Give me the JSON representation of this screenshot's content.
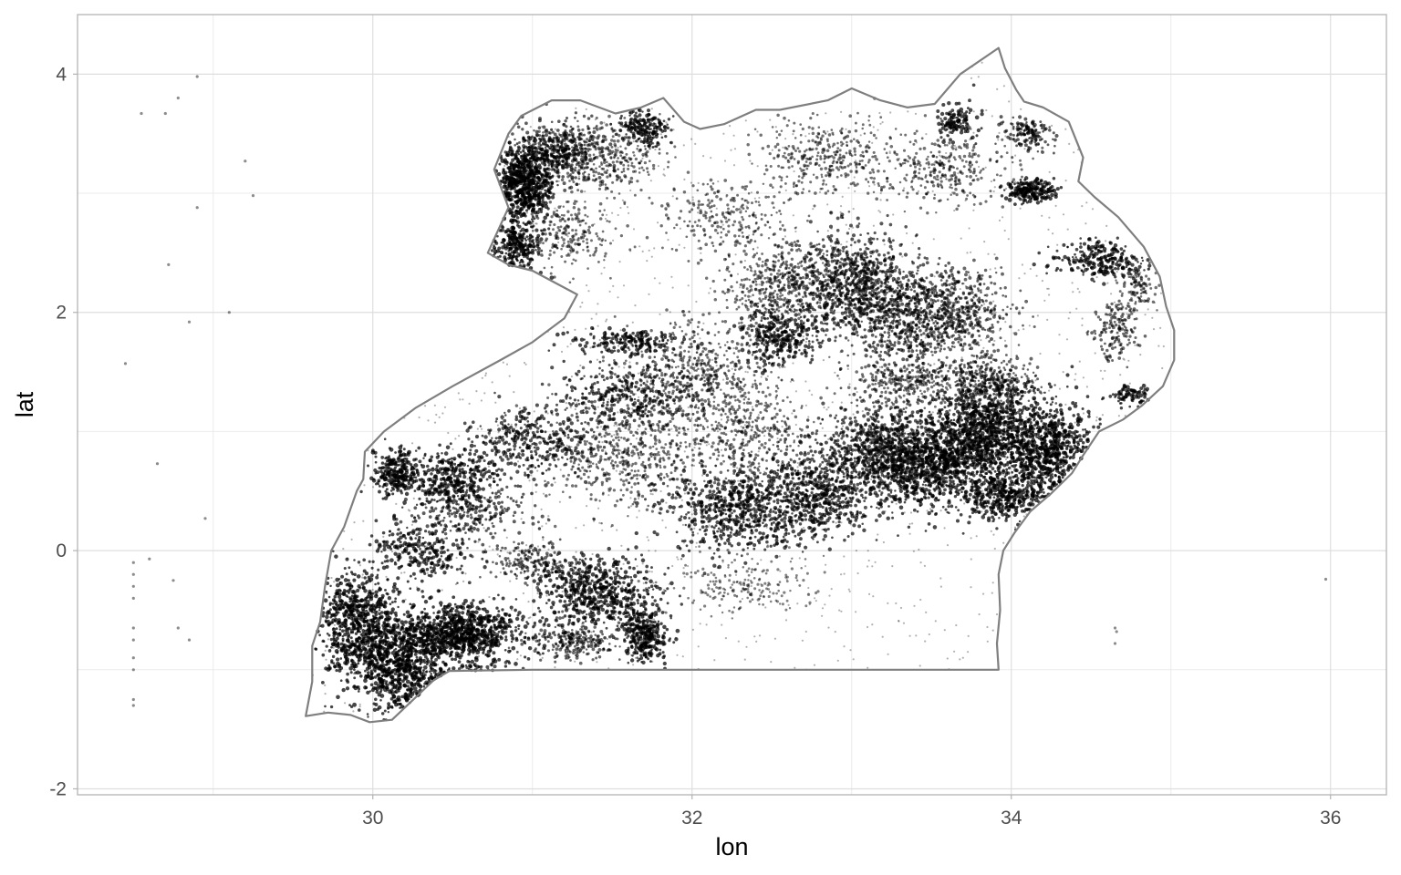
{
  "chart_data": {
    "type": "scatter",
    "title": "",
    "xlabel": "lon",
    "ylabel": "lat",
    "xlim": [
      28.15,
      36.35
    ],
    "ylim": [
      -2.05,
      4.5
    ],
    "x_ticks": [
      30,
      32,
      34,
      36
    ],
    "y_ticks": [
      -2,
      0,
      2,
      4
    ],
    "x_tick_labels": [
      "30",
      "32",
      "34",
      "36"
    ],
    "y_tick_labels": [
      "-2",
      "0",
      "2",
      "4"
    ],
    "grid": true,
    "theme": "light",
    "point_color": "#000000",
    "point_alpha": 0.35,
    "boundary_color": "#7f7f7f",
    "boundary": [
      [
        29.58,
        -1.39
      ],
      [
        29.72,
        -1.36
      ],
      [
        29.86,
        -1.38
      ],
      [
        29.98,
        -1.44
      ],
      [
        30.12,
        -1.42
      ],
      [
        30.27,
        -1.23
      ],
      [
        30.38,
        -1.09
      ],
      [
        30.48,
        -1.01
      ],
      [
        31.0,
        -1.0
      ],
      [
        31.6,
        -1.0
      ],
      [
        32.3,
        -1.0
      ],
      [
        33.0,
        -1.0
      ],
      [
        33.92,
        -1.0
      ],
      [
        33.91,
        -0.78
      ],
      [
        33.93,
        -0.5
      ],
      [
        33.92,
        -0.2
      ],
      [
        33.95,
        0.0
      ],
      [
        34.02,
        0.15
      ],
      [
        34.12,
        0.33
      ],
      [
        34.25,
        0.48
      ],
      [
        34.38,
        0.65
      ],
      [
        34.45,
        0.8
      ],
      [
        34.55,
        1.0
      ],
      [
        34.7,
        1.1
      ],
      [
        34.82,
        1.22
      ],
      [
        34.95,
        1.38
      ],
      [
        35.02,
        1.6
      ],
      [
        35.02,
        1.85
      ],
      [
        34.97,
        2.05
      ],
      [
        34.93,
        2.3
      ],
      [
        34.83,
        2.55
      ],
      [
        34.67,
        2.8
      ],
      [
        34.52,
        2.97
      ],
      [
        34.42,
        3.1
      ],
      [
        34.45,
        3.3
      ],
      [
        34.39,
        3.5
      ],
      [
        34.36,
        3.6
      ],
      [
        34.2,
        3.72
      ],
      [
        34.08,
        3.77
      ],
      [
        34.03,
        3.87
      ],
      [
        33.96,
        4.05
      ],
      [
        33.92,
        4.22
      ],
      [
        33.68,
        4.0
      ],
      [
        33.52,
        3.75
      ],
      [
        33.35,
        3.72
      ],
      [
        33.18,
        3.78
      ],
      [
        33.0,
        3.88
      ],
      [
        32.85,
        3.78
      ],
      [
        32.55,
        3.7
      ],
      [
        32.4,
        3.7
      ],
      [
        32.2,
        3.58
      ],
      [
        32.05,
        3.54
      ],
      [
        31.95,
        3.6
      ],
      [
        31.82,
        3.8
      ],
      [
        31.68,
        3.72
      ],
      [
        31.52,
        3.67
      ],
      [
        31.3,
        3.78
      ],
      [
        31.12,
        3.78
      ],
      [
        30.93,
        3.65
      ],
      [
        30.85,
        3.5
      ],
      [
        30.76,
        3.2
      ],
      [
        30.85,
        2.88
      ],
      [
        30.72,
        2.5
      ],
      [
        30.85,
        2.4
      ],
      [
        31.0,
        2.35
      ],
      [
        31.28,
        2.15
      ],
      [
        31.2,
        1.95
      ],
      [
        31.0,
        1.75
      ],
      [
        30.8,
        1.6
      ],
      [
        30.5,
        1.38
      ],
      [
        30.27,
        1.2
      ],
      [
        30.07,
        1.0
      ],
      [
        29.95,
        0.83
      ],
      [
        29.94,
        0.6
      ],
      [
        29.9,
        0.5
      ],
      [
        29.82,
        0.2
      ],
      [
        29.74,
        0.0
      ],
      [
        29.7,
        -0.3
      ],
      [
        29.67,
        -0.6
      ],
      [
        29.62,
        -0.8
      ],
      [
        29.62,
        -1.1
      ],
      [
        29.58,
        -1.39
      ]
    ],
    "clusters": [
      [
        30.95,
        3.08,
        0.14,
        0.26,
        650,
        0.95
      ],
      [
        31.15,
        3.35,
        0.25,
        0.2,
        500,
        0.7
      ],
      [
        31.45,
        3.3,
        0.3,
        0.25,
        350,
        0.5
      ],
      [
        31.7,
        3.55,
        0.12,
        0.12,
        180,
        0.9
      ],
      [
        30.9,
        2.55,
        0.13,
        0.2,
        300,
        0.9
      ],
      [
        31.25,
        2.65,
        0.22,
        0.25,
        200,
        0.5
      ],
      [
        32.2,
        2.8,
        0.3,
        0.25,
        220,
        0.5
      ],
      [
        32.85,
        3.3,
        0.35,
        0.25,
        350,
        0.5
      ],
      [
        33.6,
        3.2,
        0.3,
        0.25,
        300,
        0.5
      ],
      [
        33.65,
        3.6,
        0.1,
        0.12,
        120,
        0.9
      ],
      [
        34.1,
        3.5,
        0.12,
        0.12,
        150,
        0.7
      ],
      [
        34.12,
        3.02,
        0.12,
        0.08,
        200,
        0.95
      ],
      [
        34.55,
        2.45,
        0.25,
        0.12,
        250,
        0.9
      ],
      [
        34.65,
        1.85,
        0.12,
        0.2,
        150,
        0.6
      ],
      [
        34.8,
        2.2,
        0.1,
        0.15,
        100,
        0.5
      ],
      [
        34.75,
        1.3,
        0.1,
        0.08,
        80,
        0.9
      ],
      [
        32.55,
        2.2,
        0.3,
        0.35,
        500,
        0.5
      ],
      [
        33.0,
        2.25,
        0.3,
        0.35,
        800,
        0.75
      ],
      [
        33.35,
        1.95,
        0.3,
        0.35,
        700,
        0.7
      ],
      [
        33.7,
        2.0,
        0.25,
        0.3,
        400,
        0.6
      ],
      [
        32.55,
        1.8,
        0.2,
        0.2,
        300,
        0.9
      ],
      [
        32.0,
        1.5,
        0.4,
        0.35,
        500,
        0.5
      ],
      [
        31.6,
        1.75,
        0.3,
        0.1,
        200,
        0.9
      ],
      [
        31.6,
        1.3,
        0.35,
        0.2,
        350,
        0.8
      ],
      [
        31.0,
        0.9,
        0.35,
        0.25,
        400,
        0.8
      ],
      [
        30.5,
        0.6,
        0.25,
        0.2,
        350,
        0.9
      ],
      [
        30.15,
        0.65,
        0.12,
        0.15,
        250,
        0.95
      ],
      [
        30.3,
        0.0,
        0.25,
        0.2,
        250,
        0.9
      ],
      [
        30.6,
        0.3,
        0.3,
        0.2,
        250,
        0.7
      ],
      [
        31.6,
        0.8,
        0.4,
        0.35,
        500,
        0.5
      ],
      [
        32.3,
        1.0,
        0.35,
        0.35,
        400,
        0.5
      ],
      [
        32.3,
        0.35,
        0.35,
        0.3,
        700,
        0.85
      ],
      [
        32.8,
        0.5,
        0.3,
        0.3,
        600,
        0.85
      ],
      [
        33.2,
        0.85,
        0.3,
        0.3,
        900,
        0.75
      ],
      [
        33.5,
        0.7,
        0.3,
        0.3,
        800,
        0.9
      ],
      [
        33.8,
        1.0,
        0.25,
        0.3,
        800,
        0.95
      ],
      [
        34.2,
        0.85,
        0.25,
        0.35,
        900,
        0.95
      ],
      [
        33.95,
        0.45,
        0.2,
        0.15,
        350,
        0.9
      ],
      [
        33.85,
        1.4,
        0.25,
        0.2,
        400,
        0.6
      ],
      [
        33.35,
        1.4,
        0.3,
        0.15,
        300,
        0.5
      ],
      [
        29.9,
        -0.6,
        0.22,
        0.35,
        700,
        0.95
      ],
      [
        30.15,
        -0.95,
        0.22,
        0.35,
        800,
        0.95
      ],
      [
        30.55,
        -0.7,
        0.3,
        0.2,
        900,
        0.95
      ],
      [
        30.8,
        -1.3,
        0.15,
        0.08,
        250,
        0.95
      ],
      [
        31.4,
        -0.35,
        0.3,
        0.25,
        600,
        0.9
      ],
      [
        31.7,
        -0.7,
        0.12,
        0.2,
        300,
        0.95
      ],
      [
        31.25,
        -0.75,
        0.25,
        0.12,
        250,
        0.6
      ],
      [
        32.3,
        -0.3,
        0.35,
        0.2,
        200,
        0.35
      ],
      [
        30.55,
        -1.1,
        0.25,
        0.12,
        300,
        0.8
      ],
      [
        31.0,
        -1.2,
        0.2,
        0.08,
        120,
        0.5
      ],
      [
        31.0,
        -0.1,
        0.25,
        0.12,
        180,
        0.6
      ]
    ],
    "outliers": [
      [
        28.5,
        -0.1
      ],
      [
        28.5,
        -0.2
      ],
      [
        28.5,
        -0.3
      ],
      [
        28.5,
        -0.4
      ],
      [
        28.5,
        -0.65
      ],
      [
        28.5,
        -0.75
      ],
      [
        28.5,
        -0.9
      ],
      [
        28.5,
        -1.0
      ],
      [
        28.5,
        -1.25
      ],
      [
        28.5,
        -1.3
      ],
      [
        28.45,
        1.57
      ],
      [
        28.6,
        -0.07
      ],
      [
        28.75,
        -0.25
      ],
      [
        28.78,
        -0.65
      ],
      [
        28.85,
        -0.75
      ],
      [
        28.65,
        0.73
      ],
      [
        28.72,
        2.4
      ],
      [
        28.7,
        3.67
      ],
      [
        28.78,
        3.8
      ],
      [
        28.9,
        3.98
      ],
      [
        28.85,
        1.92
      ],
      [
        28.9,
        2.88
      ],
      [
        28.95,
        0.27
      ],
      [
        29.1,
        2.0
      ],
      [
        29.2,
        3.27
      ],
      [
        29.25,
        2.98
      ],
      [
        28.55,
        3.67
      ],
      [
        34.65,
        -0.65
      ],
      [
        34.66,
        -0.68
      ],
      [
        34.65,
        -0.78
      ],
      [
        35.97,
        -0.24
      ]
    ]
  }
}
